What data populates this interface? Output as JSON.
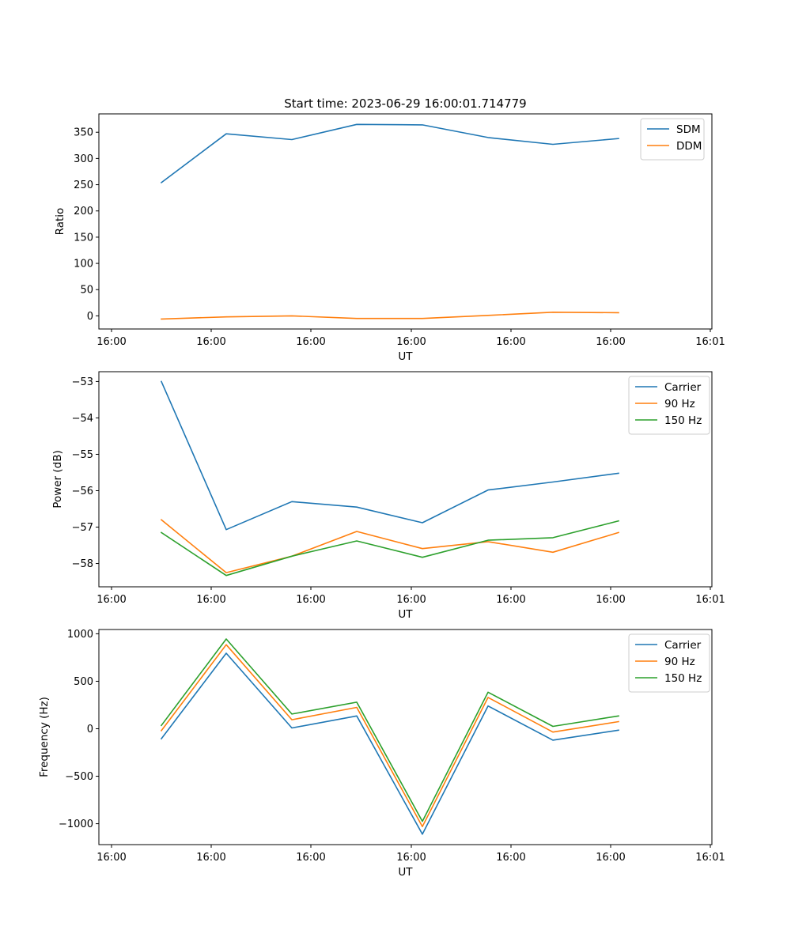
{
  "chart_data": [
    {
      "type": "line",
      "title": "Start time: 2023-06-29 16:00:01.714779",
      "xlabel": "UT",
      "ylabel": "Ratio",
      "x_tick_labels": [
        "16:00",
        "16:00",
        "16:00",
        "16:00",
        "16:00",
        "16:00",
        "16:00",
        "16:01"
      ],
      "ylim": [
        -25,
        385
      ],
      "yticks": [
        0,
        50,
        100,
        150,
        200,
        250,
        300,
        350
      ],
      "ytick_labels": [
        "0",
        "50",
        "100",
        "150",
        "200",
        "250",
        "300",
        "350"
      ],
      "legend": "top-right",
      "series": [
        {
          "name": "SDM",
          "color": "#1f77b4",
          "values": [
            254,
            347,
            336,
            365,
            364,
            340,
            327,
            338
          ]
        },
        {
          "name": "DDM",
          "color": "#ff7f0e",
          "values": [
            -6,
            -2,
            0,
            -5,
            -5,
            1,
            7,
            6
          ]
        }
      ]
    },
    {
      "type": "line",
      "title": "",
      "xlabel": "UT",
      "ylabel": "Power (dB)",
      "x_tick_labels": [
        "16:00",
        "16:00",
        "16:00",
        "16:00",
        "16:00",
        "16:00",
        "16:00",
        "16:01"
      ],
      "ylim": [
        -58.64,
        -52.73
      ],
      "yticks": [
        -58,
        -57,
        -56,
        -55,
        -54,
        -53
      ],
      "ytick_labels": [
        "−58",
        "−57",
        "−56",
        "−55",
        "−54",
        "−53"
      ],
      "legend": "top-right",
      "series": [
        {
          "name": "Carrier",
          "color": "#1f77b4",
          "values": [
            -53.0,
            -57.07,
            -56.3,
            -56.45,
            -56.88,
            -55.98,
            -55.76,
            -55.52
          ]
        },
        {
          "name": "90 Hz",
          "color": "#ff7f0e",
          "values": [
            -56.8,
            -58.25,
            -57.8,
            -57.12,
            -57.59,
            -57.4,
            -57.69,
            -57.15
          ]
        },
        {
          "name": "150 Hz",
          "color": "#2ca02c",
          "values": [
            -57.15,
            -58.33,
            -57.8,
            -57.38,
            -57.83,
            -57.36,
            -57.29,
            -56.83
          ]
        }
      ]
    },
    {
      "type": "line",
      "title": "",
      "xlabel": "UT",
      "ylabel": "Frequency (Hz)",
      "x_tick_labels": [
        "16:00",
        "16:00",
        "16:00",
        "16:00",
        "16:00",
        "16:00",
        "16:00",
        "16:01"
      ],
      "ylim": [
        -1220,
        1045
      ],
      "yticks": [
        -1000,
        -500,
        0,
        500,
        1000
      ],
      "ytick_labels": [
        "−1000",
        "−500",
        "0",
        "500",
        "1000"
      ],
      "legend": "top-right",
      "series": [
        {
          "name": "Carrier",
          "color": "#1f77b4",
          "values": [
            -105,
            795,
            8,
            135,
            -1110,
            240,
            -120,
            -15
          ]
        },
        {
          "name": "90 Hz",
          "color": "#ff7f0e",
          "values": [
            -20,
            885,
            95,
            225,
            -1030,
            330,
            -35,
            75
          ]
        },
        {
          "name": "150 Hz",
          "color": "#2ca02c",
          "values": [
            35,
            945,
            155,
            280,
            -975,
            385,
            25,
            135
          ]
        }
      ]
    }
  ]
}
